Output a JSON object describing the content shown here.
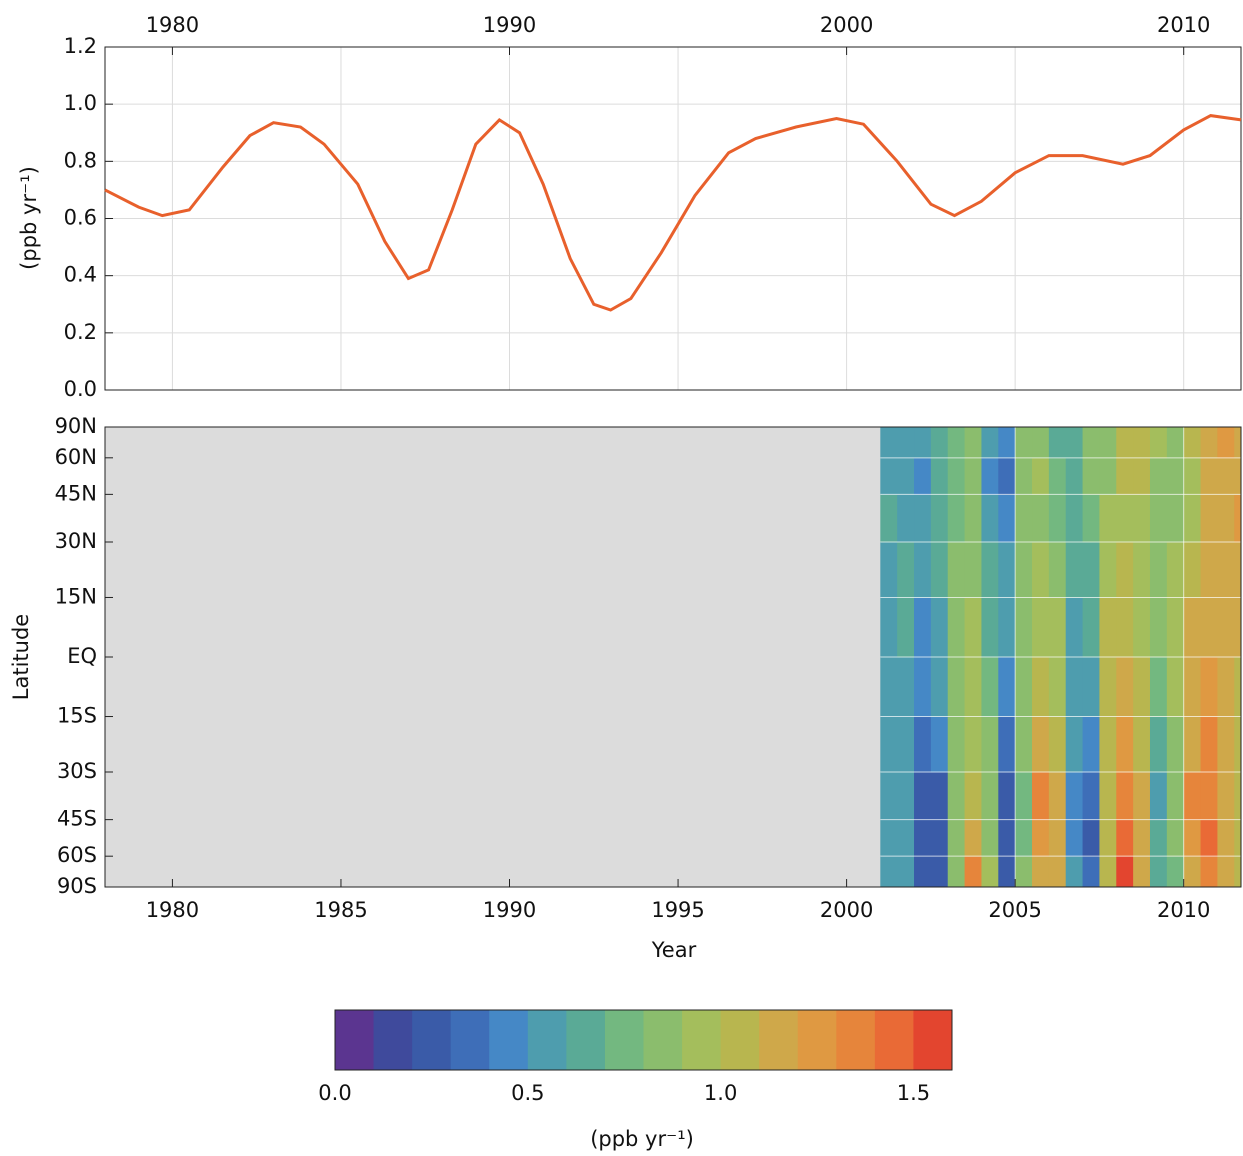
{
  "chart_data": [
    {
      "type": "line",
      "ylabel": "(ppb yr⁻¹)",
      "xlim": [
        1978,
        2011.7
      ],
      "ylim": [
        0,
        1.2
      ],
      "xticks": [
        1980,
        1990,
        2000,
        2010
      ],
      "xgrid": [
        1980,
        1985,
        1990,
        1995,
        2000,
        2005,
        2010
      ],
      "yticks": [
        {
          "value": 0,
          "label": "0.0"
        },
        0.2,
        0.4,
        0.6,
        0.8,
        {
          "value": 1,
          "label": "1.0"
        },
        1.2
      ],
      "grid": true,
      "series": [
        {
          "color": "#e8602c",
          "x": [
            1978.0,
            1979.0,
            1979.7,
            1980.5,
            1981.5,
            1982.3,
            1983.0,
            1983.8,
            1984.5,
            1985.5,
            1986.3,
            1987.0,
            1987.6,
            1988.3,
            1989.0,
            1989.7,
            1990.3,
            1991.0,
            1991.8,
            1992.5,
            1993.0,
            1993.6,
            1994.5,
            1995.5,
            1996.5,
            1997.3,
            1998.5,
            1999.7,
            2000.5,
            2001.5,
            2002.5,
            2003.2,
            2004.0,
            2005.0,
            2006.0,
            2007.0,
            2008.2,
            2009.0,
            2010.0,
            2010.8,
            2011.7
          ],
          "values": [
            0.7,
            0.64,
            0.61,
            0.63,
            0.78,
            0.89,
            0.935,
            0.92,
            0.86,
            0.72,
            0.52,
            0.39,
            0.42,
            0.63,
            0.86,
            0.945,
            0.9,
            0.72,
            0.46,
            0.3,
            0.28,
            0.32,
            0.48,
            0.68,
            0.83,
            0.88,
            0.92,
            0.95,
            0.93,
            0.8,
            0.65,
            0.61,
            0.66,
            0.76,
            0.82,
            0.82,
            0.79,
            0.82,
            0.91,
            0.96,
            0.945
          ]
        }
      ]
    },
    {
      "type": "heatmap",
      "xlabel": "Year",
      "ylabel": "Latitude",
      "xlim": [
        1978,
        2011.7
      ],
      "ylim": [
        -90,
        90
      ],
      "yscale": "sine",
      "xticks": [
        1980,
        1985,
        1990,
        1995,
        2000,
        2005,
        2010
      ],
      "yticks": [
        {
          "value": -90,
          "label": "90S"
        },
        {
          "value": -60,
          "label": "60S"
        },
        {
          "value": -45,
          "label": "45S"
        },
        {
          "value": -30,
          "label": "30S"
        },
        {
          "value": -15,
          "label": "15S"
        },
        {
          "value": 0,
          "label": "EQ"
        },
        {
          "value": 15,
          "label": "15N"
        },
        {
          "value": 30,
          "label": "30N"
        },
        {
          "value": 45,
          "label": "45N"
        },
        {
          "value": 60,
          "label": "60N"
        },
        {
          "value": 90,
          "label": "90N"
        }
      ],
      "x_edges": [
        2001.0,
        2001.5,
        2002.0,
        2002.5,
        2003.0,
        2003.5,
        2004.0,
        2004.5,
        2005.0,
        2005.5,
        2006.0,
        2006.5,
        2007.0,
        2007.5,
        2008.0,
        2008.5,
        2009.0,
        2009.5,
        2010.0,
        2010.5,
        2011.0,
        2011.5,
        2011.7
      ],
      "lat_edges": [
        -90,
        -60,
        -45,
        -30,
        -15,
        0,
        15,
        30,
        45,
        60,
        90
      ],
      "z": [
        [
          0.6,
          0.6,
          0.6,
          0.6,
          0.6,
          0.6,
          0.6,
          0.65,
          0.6,
          0.6
        ],
        [
          0.5,
          0.5,
          0.5,
          0.55,
          0.6,
          0.65,
          0.65,
          0.6,
          0.55,
          0.6
        ],
        [
          0.2,
          0.25,
          0.3,
          0.35,
          0.4,
          0.45,
          0.5,
          0.55,
          0.45,
          0.6
        ],
        [
          0.2,
          0.25,
          0.3,
          0.4,
          0.5,
          0.6,
          0.7,
          0.7,
          0.65,
          0.7
        ],
        [
          0.8,
          0.8,
          0.8,
          0.8,
          0.85,
          0.85,
          0.8,
          0.75,
          0.75,
          0.75
        ],
        [
          1.3,
          1.2,
          1.05,
          0.95,
          0.95,
          0.9,
          0.85,
          0.8,
          0.85,
          0.85
        ],
        [
          0.9,
          0.85,
          0.8,
          0.8,
          0.75,
          0.7,
          0.65,
          0.55,
          0.45,
          0.5
        ],
        [
          0.3,
          0.3,
          0.3,
          0.35,
          0.45,
          0.55,
          0.6,
          0.45,
          0.35,
          0.4
        ],
        [
          0.8,
          0.75,
          0.75,
          0.85,
          0.85,
          0.85,
          0.85,
          0.8,
          0.8,
          0.8
        ],
        [
          1.2,
          1.25,
          1.3,
          1.1,
          1.0,
          0.95,
          0.9,
          0.85,
          0.9,
          0.85
        ],
        [
          1.1,
          1.1,
          1.1,
          1.0,
          0.95,
          0.9,
          0.8,
          0.75,
          0.75,
          0.7
        ],
        [
          0.5,
          0.4,
          0.45,
          0.5,
          0.55,
          0.6,
          0.7,
          0.7,
          0.7,
          0.7
        ],
        [
          0.35,
          0.3,
          0.35,
          0.45,
          0.55,
          0.65,
          0.7,
          0.75,
          0.8,
          0.8
        ],
        [
          1.0,
          1.0,
          1.0,
          1.05,
          1.0,
          1.0,
          0.95,
          0.9,
          0.85,
          0.85
        ],
        [
          1.55,
          1.45,
          1.35,
          1.25,
          1.1,
          1.05,
          1.0,
          0.95,
          1.0,
          1.05
        ],
        [
          1.1,
          1.1,
          1.1,
          1.05,
          1.0,
          0.95,
          0.9,
          0.9,
          1.0,
          1.05
        ],
        [
          0.7,
          0.65,
          0.6,
          0.65,
          0.75,
          0.8,
          0.8,
          0.8,
          0.85,
          0.9
        ],
        [
          0.75,
          0.8,
          0.8,
          0.85,
          0.9,
          0.9,
          0.9,
          0.85,
          0.85,
          0.85
        ],
        [
          1.15,
          1.25,
          1.3,
          1.2,
          1.15,
          1.1,
          1.0,
          0.95,
          0.95,
          1.0
        ],
        [
          1.35,
          1.45,
          1.4,
          1.3,
          1.25,
          1.2,
          1.1,
          1.1,
          1.1,
          1.15
        ],
        [
          1.1,
          1.15,
          1.1,
          1.1,
          1.1,
          1.1,
          1.15,
          1.2,
          1.2,
          1.25
        ],
        [
          1.0,
          1.05,
          1.05,
          1.05,
          1.05,
          1.1,
          1.15,
          1.25,
          1.2,
          1.2
        ]
      ],
      "colorbar": {
        "label": "(ppb yr⁻¹)",
        "range": [
          0,
          1.6
        ],
        "colors": [
          "#5b3590",
          "#3f4a9c",
          "#3a5ba8",
          "#3e6eb8",
          "#4588c6",
          "#4e9dae",
          "#5aaa96",
          "#73b880",
          "#8bbd6d",
          "#a4be5c",
          "#b8b64f",
          "#cfa84a",
          "#df9942",
          "#e6853b",
          "#e96a36",
          "#e3452f"
        ],
        "ticks": [
          {
            "value": 0,
            "label": "0.0"
          },
          0.5,
          {
            "value": 1,
            "label": "1.0"
          },
          1.5
        ]
      }
    }
  ]
}
